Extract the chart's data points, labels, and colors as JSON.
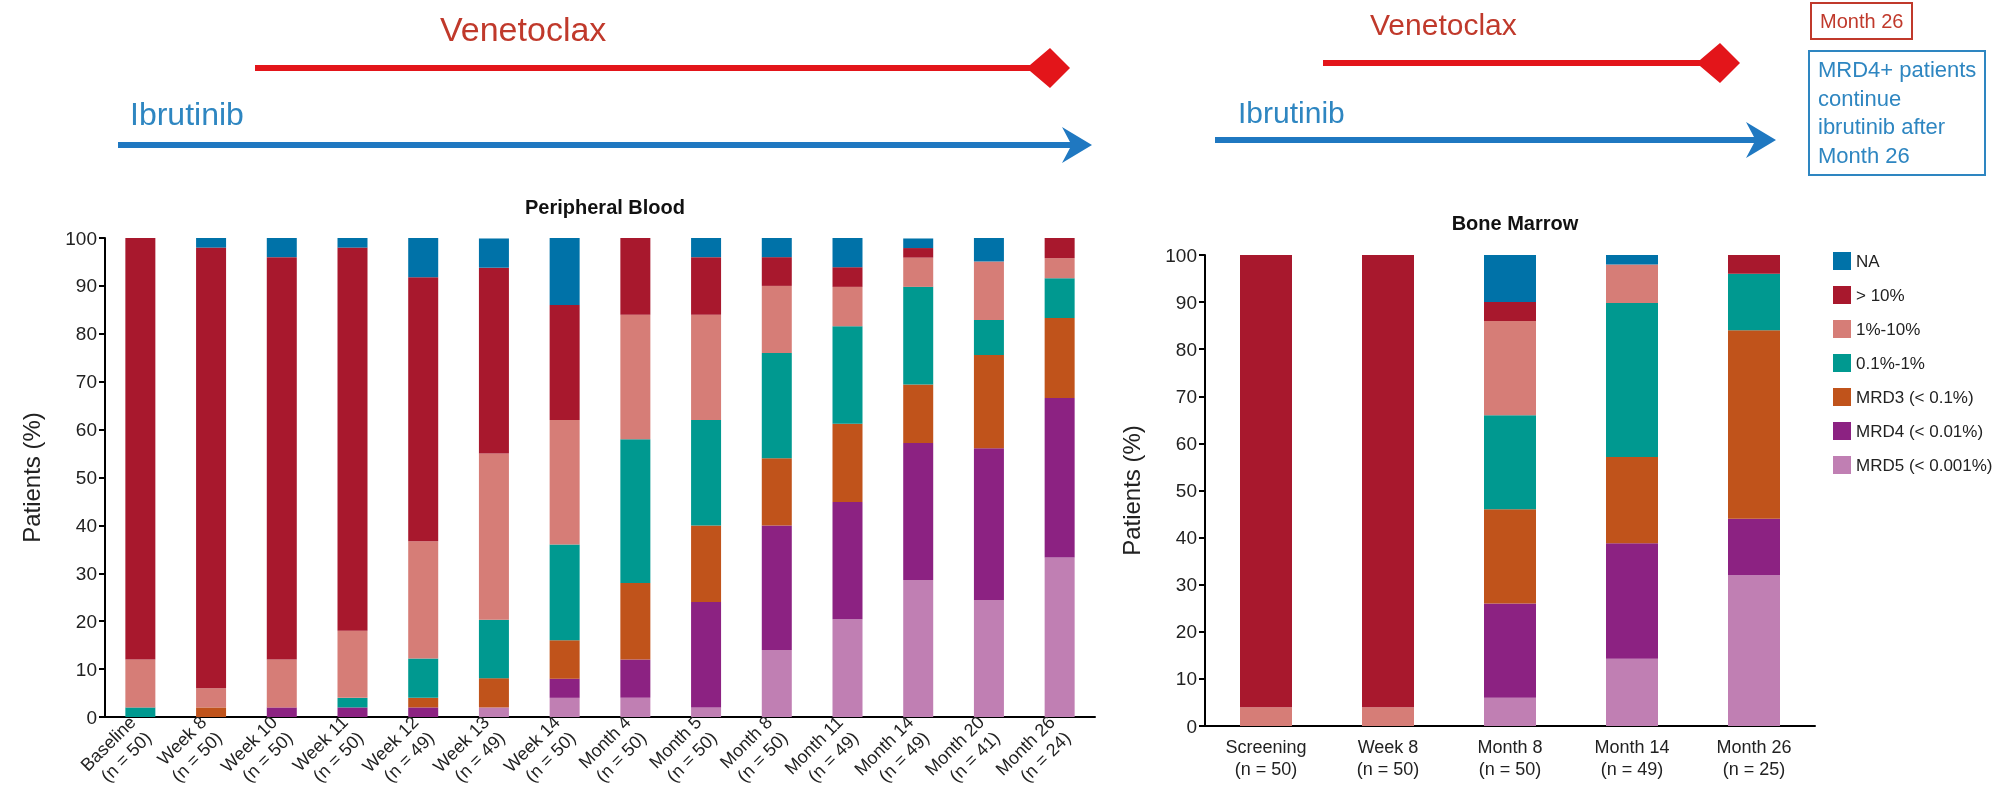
{
  "chart_data": [
    {
      "type": "bar",
      "title": "Peripheral Blood",
      "ylabel": "Patients (%)",
      "stacked": true,
      "legend": false,
      "grid": false,
      "categories": [
        "Baseline\n(n = 50)",
        "Week 8\n(n = 50)",
        "Week 10\n(n = 50)",
        "Week 11\n(n = 50)",
        "Week 12\n(n = 49)",
        "Week 13\n(n = 49)",
        "Week 14\n(n = 50)",
        "Month 4\n(n = 50)",
        "Month 5\n(n = 50)",
        "Month 8\n(n = 50)",
        "Month 11\n(n = 49)",
        "Month 14\n(n = 49)",
        "Month 20\n(n = 41)",
        "Month 26\n(n = 24)"
      ],
      "ylim": [
        0,
        100
      ],
      "yticks": [
        0,
        10,
        20,
        30,
        40,
        50,
        60,
        70,
        80,
        90,
        100
      ],
      "series": [
        {
          "color": "#c07fb3",
          "values": [
            0,
            0,
            0,
            0,
            0,
            2.0,
            4,
            4,
            2,
            14,
            20.4,
            28.6,
            24.4,
            33.3
          ]
        },
        {
          "color": "#8c2282",
          "values": [
            0,
            0,
            2,
            2,
            2.0,
            0,
            4,
            8,
            22,
            26,
            24.5,
            28.6,
            31.7,
            33.3
          ]
        },
        {
          "color": "#c0531b",
          "values": [
            0,
            2,
            0,
            0,
            2.0,
            6.1,
            8,
            16,
            16,
            14,
            16.3,
            12.2,
            19.5,
            16.7
          ]
        },
        {
          "color": "#009990",
          "values": [
            2,
            0,
            0,
            2,
            8.2,
            12.2,
            20,
            30,
            22,
            22,
            20.4,
            20.4,
            7.3,
            8.3
          ]
        },
        {
          "color": "#d67d77",
          "values": [
            10,
            4,
            10,
            14,
            24.5,
            34.7,
            26,
            26,
            22,
            14,
            8.2,
            6.1,
            12.2,
            4.2
          ]
        },
        {
          "color": "#a8182d",
          "values": [
            88,
            92,
            84,
            80,
            55.1,
            38.8,
            24,
            16,
            12,
            6,
            4.1,
            2.0,
            0,
            4.2
          ]
        },
        {
          "color": "#0072a8",
          "values": [
            0,
            2,
            4,
            2,
            8.2,
            6.1,
            14,
            0,
            4,
            4,
            6.1,
            2.0,
            4.9,
            0
          ]
        }
      ],
      "annotations": [
        "Venetoclax",
        "Ibrutinib"
      ]
    },
    {
      "type": "bar",
      "title": "Bone Marrow",
      "ylabel": "Patients (%)",
      "stacked": true,
      "legend": "right",
      "grid": false,
      "categories": [
        "Screening\n(n = 50)",
        "Week 8\n(n = 50)",
        "Month 8\n(n = 50)",
        "Month 14\n(n = 49)",
        "Month 26\n(n = 25)"
      ],
      "ylim": [
        0,
        100
      ],
      "yticks": [
        0,
        10,
        20,
        30,
        40,
        50,
        60,
        70,
        80,
        90,
        100
      ],
      "series": [
        {
          "name": "MRD5 (< 0.001%)",
          "color": "#c07fb3",
          "values": [
            0,
            0,
            6,
            14.3,
            32
          ]
        },
        {
          "name": "MRD4 (< 0.01%)",
          "color": "#8c2282",
          "values": [
            0,
            0,
            20,
            24.5,
            12
          ]
        },
        {
          "name": "MRD3 (< 0.1%)",
          "color": "#c0531b",
          "values": [
            0,
            0,
            20,
            18.3,
            40
          ]
        },
        {
          "name": "0.1%-1%",
          "color": "#009990",
          "values": [
            0,
            0,
            20,
            32.7,
            12
          ]
        },
        {
          "name": "1%-10%",
          "color": "#d67d77",
          "values": [
            4,
            4,
            20,
            8.2,
            0
          ]
        },
        {
          "name": "> 10%",
          "color": "#a8182d",
          "values": [
            96,
            96,
            4,
            0,
            4
          ]
        },
        {
          "name": "NA",
          "color": "#0072a8",
          "values": [
            0,
            0,
            10,
            2.0,
            0
          ]
        }
      ],
      "annotations": [
        "Venetoclax",
        "Ibrutinib",
        "Month 26",
        "MRD4+ patients\ncontinue\nibrutinib after\nMonth 26"
      ]
    }
  ]
}
